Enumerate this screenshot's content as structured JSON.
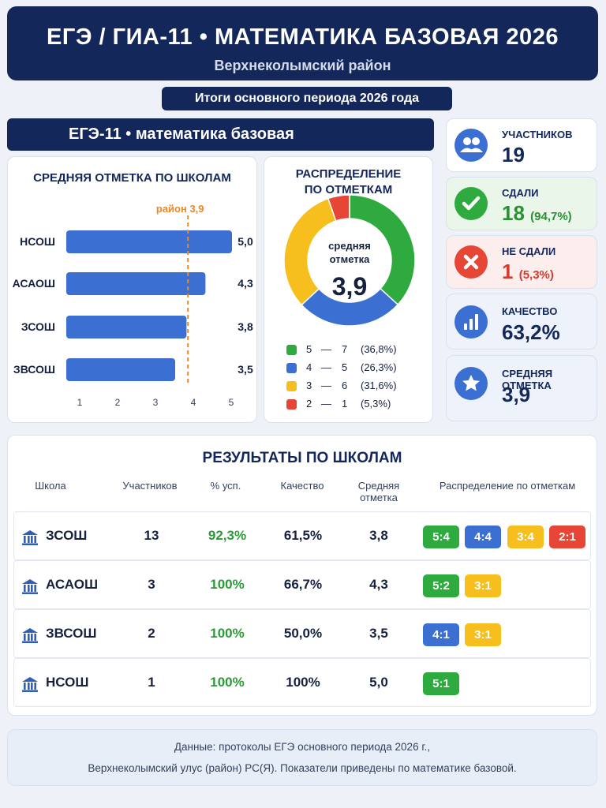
{
  "header": {
    "title": "ЕГЭ / ГИА-11 • МАТЕМАТИКА БАЗОВАЯ 2026",
    "subtitle": "Верхнеколымский район"
  },
  "period_label": "Итоги основного периода 2026 года",
  "section_title": "ЕГЭ-11 • математика базовая",
  "colors": {
    "navy": "#14275a",
    "blue": "#3b6fd1",
    "green": "#2eaa3e",
    "yellow": "#f6bf1e",
    "red": "#e74536",
    "orange": "#e8892a"
  },
  "stats": {
    "participants": {
      "label": "УЧАСТНИКОВ",
      "value": "19",
      "icon": "users-icon"
    },
    "passed": {
      "label": "СДАЛИ",
      "value": "18",
      "sub": "(94,7%)",
      "icon": "check-icon"
    },
    "failed": {
      "label": "НЕ СДАЛИ",
      "value": "1",
      "sub": "(5,3%)",
      "icon": "cross-icon"
    },
    "quality": {
      "label": "КАЧЕСТВО",
      "value": "63,2%",
      "icon": "bar-chart-icon"
    },
    "avg": {
      "label": "СРЕДНЯЯ ОТМЕТКА",
      "value": "3,9",
      "icon": "star-icon"
    }
  },
  "chart_data": [
    {
      "type": "bar",
      "title": "СРЕДНЯЯ ОТМЕТКА ПО ШКОЛАМ",
      "orientation": "horizontal",
      "categories": [
        "НСОШ",
        "АСАОШ",
        "ЗСОШ",
        "ЗВСОШ"
      ],
      "values": [
        5.0,
        4.3,
        3.8,
        3.5
      ],
      "value_labels": [
        "5,0",
        "4,3",
        "3,8",
        "3,5"
      ],
      "xlim": [
        1,
        5
      ],
      "xticks": [
        "1",
        "2",
        "3",
        "4",
        "5"
      ],
      "reference_line": {
        "value": 3.9,
        "label": "район 3,9"
      }
    },
    {
      "type": "pie",
      "donut": true,
      "title_lines": [
        "РАСПРЕДЕЛЕНИЕ",
        "ПО ОТМЕТКАМ"
      ],
      "center_label_lines": [
        "средняя",
        "отметка"
      ],
      "center_value": "3,9",
      "slices": [
        {
          "grade": "5",
          "count": 7,
          "pct": "(36,8%)",
          "share": 36.8
        },
        {
          "grade": "4",
          "count": 5,
          "pct": "(26,3%)",
          "share": 26.3
        },
        {
          "grade": "3",
          "count": 6,
          "pct": "(31,6%)",
          "share": 31.6
        },
        {
          "grade": "2",
          "count": 1,
          "pct": "(5,3%)",
          "share": 5.3
        }
      ]
    }
  ],
  "table": {
    "title": "РЕЗУЛЬТАТЫ ПО ШКОЛАМ",
    "headers": {
      "school": "Школа",
      "participants": "Участников",
      "success": "% усп.",
      "quality": "Качество",
      "avg_line1": "Средняя",
      "avg_line2": "отметка",
      "dist": "Распределение по отметкам"
    },
    "rows": [
      {
        "school": "ЗСОШ",
        "participants": "13",
        "success": "92,3%",
        "quality": "61,5%",
        "avg": "3,8",
        "chips": [
          "5:4",
          "4:4",
          "3:4",
          "2:1"
        ]
      },
      {
        "school": "АСАОШ",
        "participants": "3",
        "success": "100%",
        "quality": "66,7%",
        "avg": "4,3",
        "chips": [
          "5:2",
          "3:1"
        ]
      },
      {
        "school": "ЗВСОШ",
        "participants": "2",
        "success": "100%",
        "quality": "50,0%",
        "avg": "3,5",
        "chips": [
          "4:1",
          "3:1"
        ]
      },
      {
        "school": "НСОШ",
        "participants": "1",
        "success": "100%",
        "quality": "100%",
        "avg": "5,0",
        "chips": [
          "5:1"
        ]
      }
    ]
  },
  "footer": {
    "line1": "Данные: протоколы ЕГЭ основного периода 2026 г.,",
    "line2": "Верхнеколымский улус (район) РС(Я). Показатели приведены по математике базовой."
  }
}
